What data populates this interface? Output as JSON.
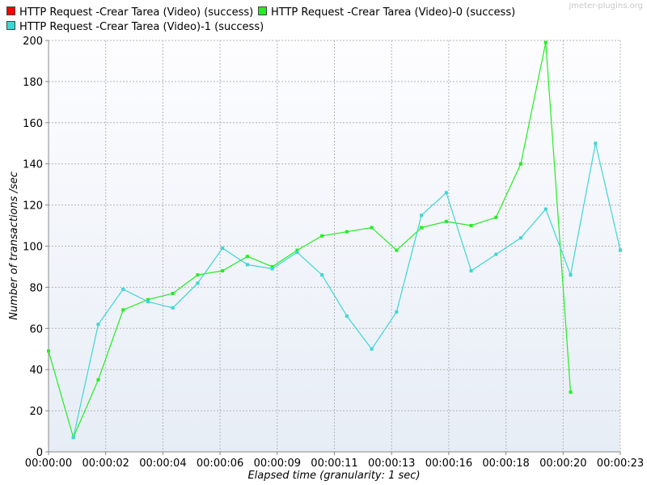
{
  "watermark": "jmeter-plugins.org",
  "chart_data": {
    "type": "line",
    "title": "",
    "xlabel": "Elapsed time (granularity: 1 sec)",
    "ylabel": "Number of transactions /sec",
    "ylim": [
      0,
      200
    ],
    "yticks": [
      "0",
      "20",
      "40",
      "60",
      "80",
      "100",
      "120",
      "140",
      "160",
      "180",
      "200"
    ],
    "xlim": [
      0,
      23
    ],
    "xticks": [
      {
        "t": 0,
        "label": "00:00:00"
      },
      {
        "t": 2.3,
        "label": "00:00:02"
      },
      {
        "t": 4.6,
        "label": "00:00:04"
      },
      {
        "t": 6.9,
        "label": "00:00:06"
      },
      {
        "t": 9.2,
        "label": "00:00:09"
      },
      {
        "t": 11.5,
        "label": "00:00:11"
      },
      {
        "t": 13.8,
        "label": "00:00:13"
      },
      {
        "t": 16.1,
        "label": "00:00:16"
      },
      {
        "t": 18.4,
        "label": "00:00:18"
      },
      {
        "t": 20.7,
        "label": "00:00:20"
      },
      {
        "t": 23,
        "label": "00:00:23"
      }
    ],
    "grid": true,
    "legend_position": "top",
    "series": [
      {
        "name": "HTTP Request -Crear Tarea  (Video) (success)",
        "color": "#ff0000",
        "x": [],
        "values": []
      },
      {
        "name": "HTTP Request -Crear Tarea  (Video)-0 (success)",
        "color": "#22ee22",
        "x": [
          0,
          1,
          2,
          3,
          4,
          5,
          6,
          7,
          8,
          9,
          10,
          11,
          12,
          13,
          14,
          15,
          16,
          17,
          18,
          19,
          20,
          21
        ],
        "values": [
          49,
          7,
          35,
          69,
          74,
          77,
          86,
          88,
          95,
          90,
          98,
          105,
          107,
          109,
          98,
          109,
          112,
          110,
          114,
          140,
          199,
          29
        ]
      },
      {
        "name": "HTTP Request -Crear Tarea  (Video)-1 (success)",
        "color": "#3cd6d6",
        "x": [
          1,
          2,
          3,
          4,
          5,
          6,
          7,
          8,
          9,
          10,
          11,
          12,
          13,
          14,
          15,
          16,
          17,
          18,
          19,
          20,
          21,
          22,
          23
        ],
        "values": [
          7,
          62,
          79,
          73,
          70,
          82,
          99,
          91,
          89,
          97,
          86,
          66,
          50,
          68,
          115,
          126,
          88,
          96,
          104,
          118,
          86,
          150,
          98
        ]
      }
    ]
  }
}
